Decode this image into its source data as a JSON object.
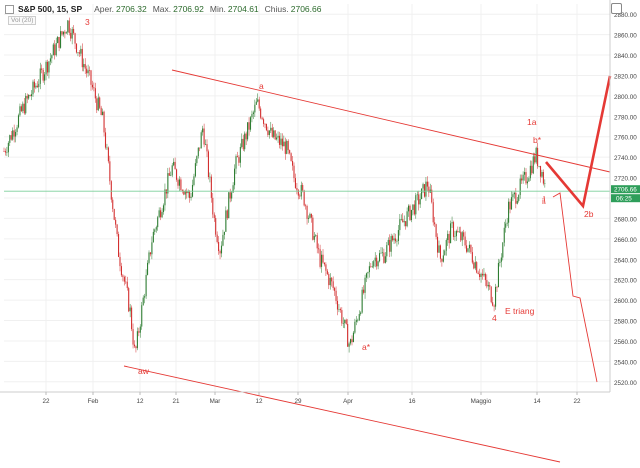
{
  "legend": {
    "symbol": "S&P 500, 15, SP",
    "open_label": "Aper.",
    "open": "2706.32",
    "high_label": "Max.",
    "high": "2706.92",
    "low_label": "Min.",
    "low": "2704.61",
    "close_label": "Chius.",
    "close": "2706.66",
    "volume_label": "Vol (20)"
  },
  "price_tags": {
    "last": "2706.66",
    "ref": "06:25"
  },
  "colors": {
    "up": "#2e7d32",
    "down": "#d32f2f",
    "annotation": "#e53935",
    "price_line": "#7ccf9a",
    "grid": "#f0f0f0"
  },
  "chart_data": {
    "type": "candlestick",
    "series": [
      {
        "name": "",
        "x": [
          "2018-01-16",
          "2018-01-19",
          "2018-01-23",
          "2018-01-26",
          "2018-01-30",
          "2018-02-02",
          "2018-02-05",
          "2018-02-08",
          "2018-02-09",
          "2018-02-13",
          "2018-02-16",
          "2018-02-21",
          "2018-02-26",
          "2018-03-01",
          "2018-03-02",
          "2018-03-06",
          "2018-03-09",
          "2018-03-13",
          "2018-03-16",
          "2018-03-20",
          "2018-03-22",
          "2018-03-26",
          "2018-03-28",
          "2018-04-02",
          "2018-04-05",
          "2018-04-09",
          "2018-04-13",
          "2018-04-18",
          "2018-04-20",
          "2018-04-25",
          "2018-04-27",
          "2018-05-01",
          "2018-05-04",
          "2018-05-08",
          "2018-05-11",
          "2018-05-14",
          "2018-05-16",
          "2018-05-17"
        ],
        "y": [
          2746,
          2790,
          2825,
          2872,
          2815,
          2775,
          2650,
          2590,
          2545,
          2660,
          2730,
          2700,
          2770,
          2680,
          2650,
          2730,
          2793,
          2760,
          2750,
          2720,
          2700,
          2640,
          2610,
          2555,
          2640,
          2645,
          2675,
          2700,
          2715,
          2640,
          2670,
          2655,
          2600,
          2690,
          2720,
          2742,
          2725,
          2707
        ]
      }
    ],
    "x_ticks": [
      "22",
      "Feb",
      "12",
      "21",
      "Mar",
      "12",
      "29",
      "Apr",
      "16",
      "Maggio",
      "14",
      "22"
    ],
    "y_ticks": [
      "2520.00",
      "2540.00",
      "2560.00",
      "2580.00",
      "2600.00",
      "2620.00",
      "2640.00",
      "2660.00",
      "2680.00",
      "2700.00",
      "2720.00",
      "2740.00",
      "2760.00",
      "2780.00",
      "2800.00",
      "2820.00",
      "2840.00",
      "2860.00",
      "2880.00"
    ],
    "ylim": [
      2510,
      2890
    ],
    "grid": true,
    "annotations": [
      "3",
      "aw",
      "a",
      "a*",
      "1a",
      "b*",
      "2b",
      "4",
      "E triang",
      "i"
    ]
  }
}
